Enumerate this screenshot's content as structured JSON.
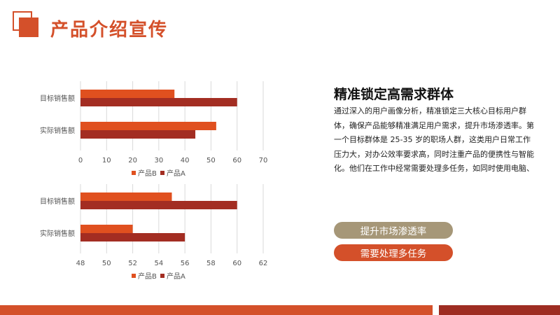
{
  "header": {
    "title": "产品介绍宣传"
  },
  "side": {
    "heading": "精准锁定高需求群体",
    "paragraph": "通过深入的用户画像分析，精准锁定三大核心目标用户群体，确保产品能够精准满足用户需求，提升市场渗透率。第一个目标群体是 25-35 岁的职场人群，这类用户日常工作压力大，对办公效率要求高，同时注重产品的便携性与智能化。他们在工作中经常需要处理多任务，如同时使用电脑、手机处理文件，传统产品操作繁琐、续航短的问题",
    "buttons": [
      {
        "label": "提升市场渗透率",
        "color": "#a69778"
      },
      {
        "label": "需要处理多任务",
        "color": "#d4502a"
      }
    ]
  },
  "colors": {
    "accent": "#d4502a",
    "series_b": "#e0501f",
    "series_a": "#a32d22",
    "footer_dark": "#9e2d22"
  },
  "chart_data": [
    {
      "type": "bar",
      "orientation": "horizontal",
      "categories": [
        "目标销售额",
        "实际销售额"
      ],
      "series": [
        {
          "name": "产品B",
          "values": [
            36,
            52
          ]
        },
        {
          "name": "产品A",
          "values": [
            60,
            44
          ]
        }
      ],
      "xlim": [
        0,
        70
      ],
      "xticks": [
        0,
        10,
        20,
        30,
        40,
        50,
        60,
        70
      ],
      "grid": "vertical",
      "legend": "bottom"
    },
    {
      "type": "bar",
      "orientation": "horizontal",
      "categories": [
        "目标销售额",
        "实际销售额"
      ],
      "series": [
        {
          "name": "产品B",
          "values": [
            55,
            52
          ]
        },
        {
          "name": "产品A",
          "values": [
            60,
            56
          ]
        }
      ],
      "xlim": [
        48,
        62
      ],
      "xticks": [
        48,
        50,
        52,
        54,
        56,
        58,
        60,
        62
      ],
      "grid": "vertical",
      "legend": "bottom"
    }
  ]
}
